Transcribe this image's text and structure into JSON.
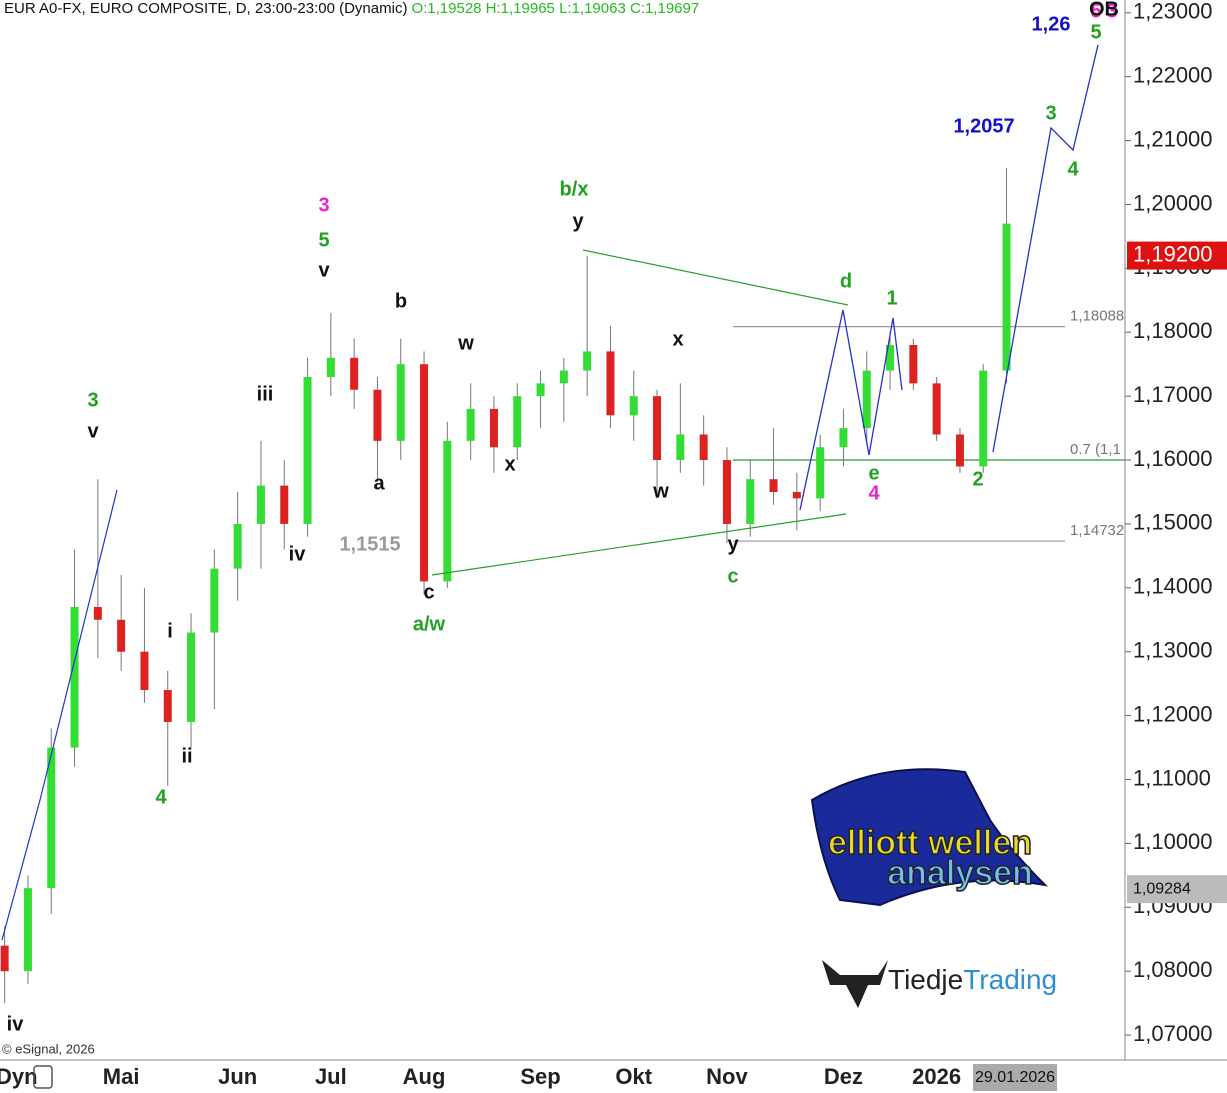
{
  "header": {
    "title": "EUR A0-FX, EURO COMPOSITE, D, 23:00-23:00 (Dynamic)",
    "ohlc": "O:1,19528 H:1,19965 L:1,19063 C:1,19697"
  },
  "footer": {
    "copyright": "© eSignal, 2026",
    "dyn": "Dyn",
    "date": "29.01.2026"
  },
  "logos": {
    "elliott": [
      "elliott wellen",
      "analysen"
    ],
    "tiedje": [
      "Tiedje",
      "Trading"
    ]
  },
  "chart_data": {
    "type": "candlestick",
    "categories": [
      null,
      null,
      null,
      null,
      null,
      "Mai",
      null,
      null,
      null,
      null,
      "Jun",
      null,
      null,
      null,
      "Jul",
      null,
      null,
      null,
      "Aug",
      null,
      null,
      null,
      null,
      "Sep",
      null,
      null,
      null,
      "Okt",
      null,
      null,
      null,
      "Nov",
      null,
      null,
      null,
      null,
      "Dez",
      null,
      null,
      null,
      "2026",
      null,
      null,
      null
    ],
    "open": [
      1.084,
      1.08,
      1.093,
      1.115,
      1.137,
      1.135,
      1.13,
      1.124,
      1.119,
      1.133,
      1.143,
      1.15,
      1.156,
      1.15,
      1.173,
      1.176,
      1.171,
      1.163,
      1.175,
      1.141,
      1.163,
      1.168,
      1.162,
      1.17,
      1.172,
      1.174,
      1.177,
      1.167,
      1.17,
      1.16,
      1.164,
      1.16,
      1.15,
      1.157,
      1.155,
      1.154,
      1.162,
      1.165,
      1.174,
      1.178,
      1.172,
      1.164,
      1.159,
      1.174
    ],
    "high": [
      1.087,
      1.095,
      1.118,
      1.146,
      1.157,
      1.142,
      1.14,
      1.127,
      1.136,
      1.146,
      1.155,
      1.163,
      1.16,
      1.176,
      1.183,
      1.179,
      1.173,
      1.179,
      1.177,
      1.166,
      1.172,
      1.17,
      1.172,
      1.174,
      1.176,
      1.192,
      1.181,
      1.174,
      1.171,
      1.172,
      1.167,
      1.162,
      1.16,
      1.165,
      1.158,
      1.164,
      1.168,
      1.177,
      1.18,
      1.179,
      1.173,
      1.165,
      1.175,
      1.2057
    ],
    "low": [
      1.075,
      1.078,
      1.089,
      1.112,
      1.129,
      1.127,
      1.122,
      1.109,
      1.115,
      1.121,
      1.138,
      1.143,
      1.146,
      1.148,
      1.17,
      1.168,
      1.157,
      1.16,
      1.139,
      1.14,
      1.16,
      1.158,
      1.16,
      1.165,
      1.166,
      1.17,
      1.165,
      1.163,
      1.154,
      1.158,
      1.156,
      1.147,
      1.148,
      1.153,
      1.149,
      1.152,
      1.159,
      1.163,
      1.171,
      1.171,
      1.163,
      1.158,
      1.158,
      1.172
    ],
    "close": [
      1.08,
      1.093,
      1.115,
      1.137,
      1.135,
      1.13,
      1.124,
      1.119,
      1.133,
      1.143,
      1.15,
      1.156,
      1.15,
      1.173,
      1.176,
      1.171,
      1.163,
      1.175,
      1.141,
      1.163,
      1.168,
      1.162,
      1.17,
      1.172,
      1.174,
      1.177,
      1.167,
      1.17,
      1.16,
      1.164,
      1.16,
      1.15,
      1.157,
      1.155,
      1.154,
      1.162,
      1.165,
      1.174,
      1.178,
      1.172,
      1.164,
      1.159,
      1.174,
      1.197
    ],
    "up_color": "#33dd33",
    "down_color": "#dd2222",
    "ylim": [
      1.0661,
      1.232
    ],
    "yticks": [
      {
        "value": 1.07,
        "label": "1,07000"
      },
      {
        "value": 1.08,
        "label": "1,08000"
      },
      {
        "value": 1.09,
        "label": "1,09000"
      },
      {
        "value": 1.1,
        "label": "1,10000"
      },
      {
        "value": 1.11,
        "label": "1,11000"
      },
      {
        "value": 1.12,
        "label": "1,12000"
      },
      {
        "value": 1.13,
        "label": "1,13000"
      },
      {
        "value": 1.14,
        "label": "1,14000"
      },
      {
        "value": 1.15,
        "label": "1,15000"
      },
      {
        "value": 1.16,
        "label": "1,16000"
      },
      {
        "value": 1.17,
        "label": "1,17000"
      },
      {
        "value": 1.18,
        "label": "1,18000"
      },
      {
        "value": 1.19,
        "label": "1,19000"
      },
      {
        "value": 1.2,
        "label": "1,20000"
      },
      {
        "value": 1.21,
        "label": "1,21000"
      },
      {
        "value": 1.22,
        "label": "1,22000"
      },
      {
        "value": 1.23,
        "label": "1,23000"
      }
    ],
    "levels": [
      {
        "value": 1.18088,
        "label": "1,18088",
        "color": "#999999"
      },
      {
        "value": 1.16,
        "label": "0.7 (1,1",
        "color": "#2aa02a"
      },
      {
        "value": 1.14732,
        "label": "1,14732",
        "color": "#999999"
      }
    ],
    "price_boxes": [
      {
        "value": 1.192,
        "label": "1,19200",
        "color": "#dd1111"
      },
      {
        "value": 1.09284,
        "label": "1,09284",
        "color": "#bbbbbb"
      }
    ],
    "annotations": [
      {
        "text": "3",
        "color": "#22a022"
      },
      {
        "text": "v",
        "color": "#111111"
      },
      {
        "text": "3",
        "color": "#ee22cc"
      },
      {
        "text": "5",
        "color": "#22a022"
      },
      {
        "text": "v",
        "color": "#111111"
      },
      {
        "text": "iii",
        "color": "#111111"
      },
      {
        "text": "iv",
        "color": "#111111"
      },
      {
        "text": "b",
        "color": "#111111"
      },
      {
        "text": "a",
        "color": "#111111"
      },
      {
        "text": "c",
        "color": "#111111"
      },
      {
        "text": "a/w",
        "color": "#22a022"
      },
      {
        "text": "i",
        "color": "#111111"
      },
      {
        "text": "ii",
        "color": "#111111"
      },
      {
        "text": "4",
        "color": "#22a022"
      },
      {
        "text": "iv",
        "color": "#111111"
      },
      {
        "text": "w",
        "color": "#111111"
      },
      {
        "text": "x",
        "color": "#111111"
      },
      {
        "text": "b/x",
        "color": "#22a022"
      },
      {
        "text": "y",
        "color": "#111111"
      },
      {
        "text": "x",
        "color": "#111111"
      },
      {
        "text": "w",
        "color": "#111111"
      },
      {
        "text": "y",
        "color": "#111111"
      },
      {
        "text": "c",
        "color": "#22a022"
      },
      {
        "text": "d",
        "color": "#22a022"
      },
      {
        "text": "1",
        "color": "#22a022"
      },
      {
        "text": "e",
        "color": "#22a022"
      },
      {
        "text": "4",
        "color": "#ee22cc"
      },
      {
        "text": "2",
        "color": "#22a022"
      },
      {
        "text": "3",
        "color": "#22a022"
      },
      {
        "text": "4",
        "color": "#22a022"
      },
      {
        "text": "5",
        "color": "#22a022"
      },
      {
        "text": "5",
        "color": "#ee22cc"
      },
      {
        "text": "3",
        "color": "#ee22cc"
      },
      {
        "text": "1,26",
        "color": "#1111cc"
      },
      {
        "text": "1,2057",
        "color": "#1111cc"
      },
      {
        "text": "1,1515",
        "color": "#999999"
      },
      {
        "text": "OB",
        "color": "#111111"
      }
    ]
  }
}
